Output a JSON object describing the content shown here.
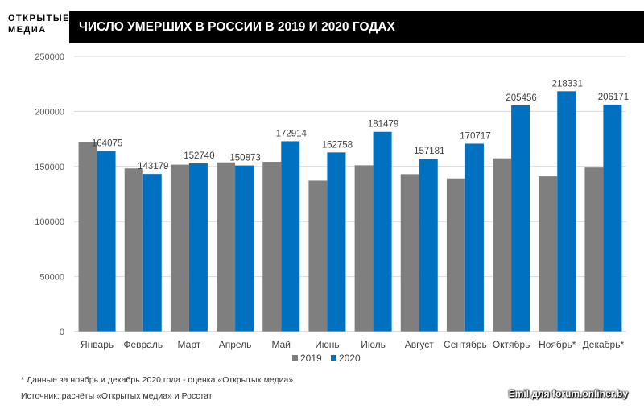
{
  "logo": {
    "line1": "ОТКРЫТЫЕ",
    "line2": "МЕДИА"
  },
  "header": {
    "title": "ЧИСЛО УМЕРШИХ В РОССИИ В 2019 И 2020 ГОДАХ"
  },
  "footnote": "* Данные за ноябрь и декабрь 2020 года - оценка «Открытых медиа»",
  "source": "Источник: расчёты «Открытых медиа» и Росстат",
  "watermark": "Emil для forum.onliner.by",
  "chart_data": {
    "type": "bar",
    "title": "ЧИСЛО УМЕРШИХ В РОССИИ В 2019 И 2020 ГОДАХ",
    "categories": [
      "Январь",
      "Февраль",
      "Март",
      "Апрель",
      "Май",
      "Июнь",
      "Июль",
      "Август",
      "Сентябрь",
      "Октябрь",
      "Ноябрь*",
      "Декабрь*"
    ],
    "series": [
      {
        "name": "2019",
        "color": "#7f7f7f",
        "values": [
          172400,
          148200,
          151600,
          153700,
          154200,
          137100,
          151000,
          143000,
          139100,
          157400,
          141000,
          149000
        ],
        "labeled": false
      },
      {
        "name": "2020",
        "color": "#0070c0",
        "values": [
          164075,
          143179,
          152740,
          150873,
          172914,
          162758,
          181479,
          157181,
          170717,
          205456,
          218331,
          206171
        ],
        "labeled": true
      }
    ],
    "yticks": [
      0,
      50000,
      100000,
      150000,
      200000,
      250000
    ],
    "ylim": [
      0,
      250000
    ],
    "grid": true,
    "legend": "bottom-center"
  }
}
